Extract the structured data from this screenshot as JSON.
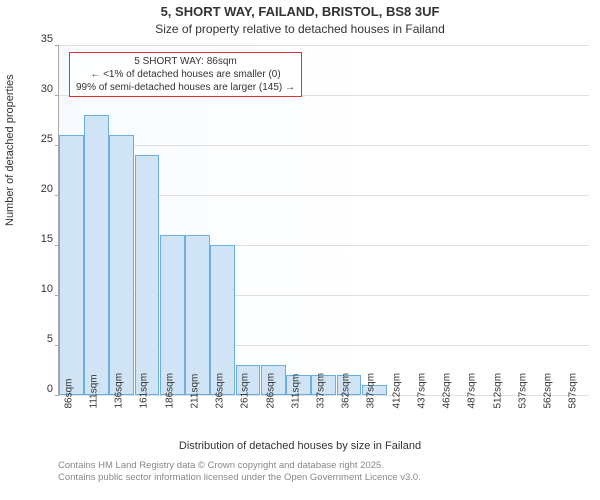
{
  "title1": "5, SHORT WAY, FAILAND, BRISTOL, BS8 3UF",
  "title2": "Size of property relative to detached houses in Failand",
  "ylabel": "Number of detached properties",
  "xlabel": "Distribution of detached houses by size in Failand",
  "attribution_line1": "Contains HM Land Registry data © Crown copyright and database right 2025.",
  "attribution_line2": "Contains public sector information licensed under the Open Government Licence v3.0.",
  "chart": {
    "type": "bar",
    "ylim": [
      0,
      35
    ],
    "ytick_step": 5,
    "yticks": [
      0,
      5,
      10,
      15,
      20,
      25,
      30,
      35
    ],
    "categories": [
      "86sqm",
      "111sqm",
      "136sqm",
      "161sqm",
      "186sqm",
      "211sqm",
      "236sqm",
      "261sqm",
      "286sqm",
      "311sqm",
      "337sqm",
      "362sqm",
      "387sqm",
      "412sqm",
      "437sqm",
      "462sqm",
      "487sqm",
      "512sqm",
      "537sqm",
      "562sqm",
      "587sqm"
    ],
    "values": [
      26,
      28,
      26,
      24,
      16,
      16,
      15,
      3,
      3,
      2,
      2,
      2,
      1,
      0,
      0,
      0,
      0,
      0,
      0,
      0,
      0
    ],
    "bar_fill": "#d0e4f5",
    "bar_border": "#6baedf",
    "grid_color": "#e0e0e0",
    "plot_bg_start": "#f7fbff",
    "plot_bg_end": "#ffffff"
  },
  "info_box": {
    "line1": "5 SHORT WAY: 86sqm",
    "line2": "← <1% of detached houses are smaller (0)",
    "line3": "99% of semi-detached houses are larger (145) →",
    "border_color": "#e03030"
  }
}
